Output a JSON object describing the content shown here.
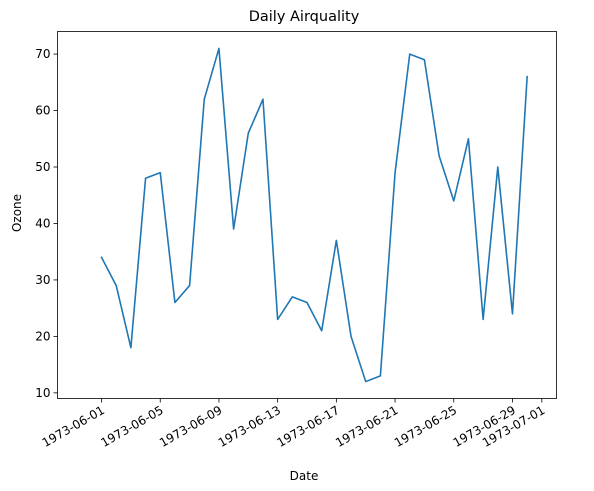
{
  "chart_data": {
    "type": "line",
    "title": "Daily Airquality",
    "xlabel": "Date",
    "ylabel": "Ozone",
    "x_is_date": true,
    "xlim": [
      "1973-05-29",
      "1973-07-02"
    ],
    "ylim": [
      9.0,
      74.0
    ],
    "x_ticks": [
      "1973-06-01",
      "1973-06-05",
      "1973-06-09",
      "1973-06-13",
      "1973-06-17",
      "1973-06-21",
      "1973-06-25",
      "1973-06-29",
      "1973-07-01"
    ],
    "y_ticks": [
      10,
      20,
      30,
      40,
      50,
      60,
      70
    ],
    "grid": false,
    "color": "#1f77b4",
    "series": [
      {
        "x": [
          "1973-06-01",
          "1973-06-02",
          "1973-06-03",
          "1973-06-04",
          "1973-06-05",
          "1973-06-06",
          "1973-06-07",
          "1973-06-08",
          "1973-06-09",
          "1973-06-10",
          "1973-06-11",
          "1973-06-12",
          "1973-06-13",
          "1973-06-14",
          "1973-06-15",
          "1973-06-16",
          "1973-06-17",
          "1973-06-18",
          "1973-06-19",
          "1973-06-20",
          "1973-06-21",
          "1973-06-22",
          "1973-06-23",
          "1973-06-24",
          "1973-06-25",
          "1973-06-26",
          "1973-06-27",
          "1973-06-28",
          "1973-06-29",
          "1973-06-30"
        ],
        "y": [
          34,
          29,
          18,
          48,
          49,
          26,
          29,
          62,
          71,
          39,
          56,
          62,
          23,
          27,
          26,
          21,
          37,
          20,
          12,
          13,
          49,
          70,
          69,
          52,
          44,
          55,
          23,
          50,
          24,
          66
        ]
      }
    ]
  }
}
